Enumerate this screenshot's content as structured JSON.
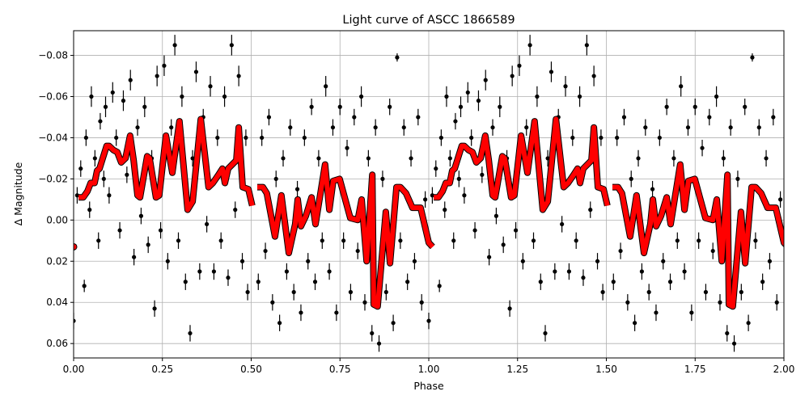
{
  "chart_data": {
    "type": "scatter",
    "title": "Light curve of ASCC 1866589",
    "xlabel": "Phase",
    "ylabel": "Δ Magnitude",
    "xlim": [
      0,
      2
    ],
    "ylim": [
      0.067,
      -0.092
    ],
    "y_inverted": true,
    "grid": true,
    "x_ticks": [
      "0.00",
      "0.25",
      "0.50",
      "0.75",
      "1.00",
      "1.25",
      "1.50",
      "1.75",
      "2.00"
    ],
    "x_tick_values": [
      0,
      0.25,
      0.5,
      0.75,
      1,
      1.25,
      1.5,
      1.75,
      2
    ],
    "y_ticks": [
      "−0.08",
      "−0.06",
      "−0.04",
      "−0.02",
      "0.00",
      "0.02",
      "0.04",
      "0.06"
    ],
    "y_tick_values": [
      -0.08,
      -0.06,
      -0.04,
      -0.02,
      0,
      0.02,
      0.04,
      0.06
    ],
    "colors": {
      "observations": "#000000",
      "model": "#ff0000",
      "grid": "#b0b0b0"
    },
    "observations_repeated_at_phase_plus_one": true,
    "observations": [
      [
        0.0,
        0.049,
        0.004
      ],
      [
        0.01,
        -0.012,
        0.004
      ],
      [
        0.02,
        -0.025,
        0.004
      ],
      [
        0.03,
        0.032,
        0.003
      ],
      [
        0.035,
        -0.04,
        0.004
      ],
      [
        0.045,
        -0.005,
        0.004
      ],
      [
        0.05,
        -0.06,
        0.005
      ],
      [
        0.06,
        -0.03,
        0.004
      ],
      [
        0.07,
        0.01,
        0.004
      ],
      [
        0.075,
        -0.048,
        0.004
      ],
      [
        0.085,
        -0.02,
        0.004
      ],
      [
        0.09,
        -0.055,
        0.005
      ],
      [
        0.1,
        -0.012,
        0.004
      ],
      [
        0.11,
        -0.062,
        0.005
      ],
      [
        0.12,
        -0.04,
        0.004
      ],
      [
        0.13,
        0.005,
        0.004
      ],
      [
        0.14,
        -0.058,
        0.005
      ],
      [
        0.15,
        -0.022,
        0.004
      ],
      [
        0.16,
        -0.068,
        0.005
      ],
      [
        0.17,
        0.018,
        0.004
      ],
      [
        0.18,
        -0.045,
        0.004
      ],
      [
        0.19,
        -0.002,
        0.004
      ],
      [
        0.2,
        -0.055,
        0.005
      ],
      [
        0.21,
        0.012,
        0.004
      ],
      [
        0.22,
        -0.03,
        0.004
      ],
      [
        0.228,
        0.043,
        0.004
      ],
      [
        0.235,
        -0.07,
        0.005
      ],
      [
        0.245,
        0.005,
        0.004
      ],
      [
        0.255,
        -0.075,
        0.005
      ],
      [
        0.265,
        0.02,
        0.004
      ],
      [
        0.275,
        -0.045,
        0.004
      ],
      [
        0.285,
        -0.085,
        0.005
      ],
      [
        0.295,
        0.01,
        0.004
      ],
      [
        0.305,
        -0.06,
        0.005
      ],
      [
        0.315,
        0.03,
        0.004
      ],
      [
        0.328,
        0.055,
        0.004
      ],
      [
        0.335,
        -0.03,
        0.004
      ],
      [
        0.345,
        -0.072,
        0.005
      ],
      [
        0.355,
        0.025,
        0.004
      ],
      [
        0.365,
        -0.05,
        0.004
      ],
      [
        0.375,
        0.002,
        0.004
      ],
      [
        0.385,
        -0.065,
        0.005
      ],
      [
        0.395,
        0.025,
        0.004
      ],
      [
        0.405,
        -0.04,
        0.004
      ],
      [
        0.415,
        0.01,
        0.004
      ],
      [
        0.425,
        -0.06,
        0.005
      ],
      [
        0.435,
        0.028,
        0.004
      ],
      [
        0.445,
        -0.085,
        0.005
      ],
      [
        0.455,
        -0.005,
        0.004
      ],
      [
        0.465,
        -0.07,
        0.005
      ],
      [
        0.475,
        0.02,
        0.004
      ],
      [
        0.485,
        -0.04,
        0.004
      ],
      [
        0.49,
        0.035,
        0.004
      ],
      [
        0.52,
        0.03,
        0.004
      ],
      [
        0.53,
        -0.04,
        0.004
      ],
      [
        0.54,
        0.015,
        0.004
      ],
      [
        0.55,
        -0.05,
        0.004
      ],
      [
        0.56,
        0.04,
        0.004
      ],
      [
        0.57,
        -0.02,
        0.004
      ],
      [
        0.58,
        0.05,
        0.004
      ],
      [
        0.59,
        -0.03,
        0.004
      ],
      [
        0.6,
        0.025,
        0.004
      ],
      [
        0.61,
        -0.045,
        0.004
      ],
      [
        0.62,
        0.035,
        0.004
      ],
      [
        0.63,
        -0.015,
        0.004
      ],
      [
        0.64,
        0.045,
        0.004
      ],
      [
        0.65,
        -0.04,
        0.004
      ],
      [
        0.66,
        0.02,
        0.004
      ],
      [
        0.67,
        -0.055,
        0.004
      ],
      [
        0.68,
        0.03,
        0.004
      ],
      [
        0.69,
        -0.03,
        0.004
      ],
      [
        0.7,
        0.01,
        0.004
      ],
      [
        0.71,
        -0.065,
        0.005
      ],
      [
        0.72,
        0.025,
        0.004
      ],
      [
        0.73,
        -0.045,
        0.004
      ],
      [
        0.74,
        0.045,
        0.004
      ],
      [
        0.75,
        -0.055,
        0.004
      ],
      [
        0.76,
        0.01,
        0.004
      ],
      [
        0.77,
        -0.035,
        0.004
      ],
      [
        0.78,
        0.035,
        0.004
      ],
      [
        0.79,
        -0.05,
        0.004
      ],
      [
        0.8,
        0.015,
        0.004
      ],
      [
        0.81,
        -0.06,
        0.005
      ],
      [
        0.82,
        0.04,
        0.004
      ],
      [
        0.83,
        -0.03,
        0.004
      ],
      [
        0.84,
        0.055,
        0.004
      ],
      [
        0.85,
        -0.045,
        0.004
      ],
      [
        0.86,
        0.06,
        0.004
      ],
      [
        0.87,
        -0.02,
        0.004
      ],
      [
        0.88,
        0.035,
        0.004
      ],
      [
        0.89,
        -0.055,
        0.004
      ],
      [
        0.9,
        0.05,
        0.004
      ],
      [
        0.911,
        -0.079,
        0.002
      ],
      [
        0.92,
        0.01,
        0.004
      ],
      [
        0.93,
        -0.045,
        0.004
      ],
      [
        0.94,
        0.03,
        0.004
      ],
      [
        0.95,
        -0.03,
        0.004
      ],
      [
        0.96,
        0.02,
        0.004
      ],
      [
        0.97,
        -0.05,
        0.004
      ],
      [
        0.98,
        0.04,
        0.004
      ],
      [
        0.99,
        -0.01,
        0.004
      ]
    ],
    "model_segments": [
      [
        [
          0.014,
          -0.011
        ],
        [
          0.027,
          -0.011
        ],
        [
          0.039,
          -0.014
        ],
        [
          0.048,
          -0.018
        ],
        [
          0.059,
          -0.018
        ],
        [
          0.066,
          -0.024
        ],
        [
          0.073,
          -0.025
        ],
        [
          0.082,
          -0.03
        ],
        [
          0.093,
          -0.036
        ],
        [
          0.1,
          -0.036
        ],
        [
          0.112,
          -0.034
        ],
        [
          0.123,
          -0.033
        ],
        [
          0.134,
          -0.028
        ],
        [
          0.146,
          -0.03
        ],
        [
          0.159,
          -0.041
        ],
        [
          0.169,
          -0.029
        ],
        [
          0.18,
          -0.012
        ],
        [
          0.187,
          -0.011
        ],
        [
          0.207,
          -0.031
        ],
        [
          0.214,
          -0.03
        ],
        [
          0.232,
          -0.011
        ],
        [
          0.241,
          -0.012
        ],
        [
          0.26,
          -0.041
        ],
        [
          0.278,
          -0.023
        ],
        [
          0.298,
          -0.048
        ],
        [
          0.321,
          -0.005
        ],
        [
          0.335,
          -0.009
        ],
        [
          0.358,
          -0.049
        ],
        [
          0.38,
          -0.016
        ],
        [
          0.392,
          -0.018
        ],
        [
          0.408,
          -0.022
        ],
        [
          0.419,
          -0.025
        ],
        [
          0.426,
          -0.018
        ],
        [
          0.435,
          -0.025
        ],
        [
          0.458,
          -0.029
        ],
        [
          0.465,
          -0.045
        ],
        [
          0.476,
          -0.016
        ],
        [
          0.492,
          -0.015
        ],
        [
          0.503,
          -0.007
        ]
      ],
      [
        [
          0.517,
          -0.016
        ],
        [
          0.533,
          -0.016
        ],
        [
          0.544,
          -0.013
        ],
        [
          0.567,
          0.008
        ],
        [
          0.585,
          -0.012
        ],
        [
          0.606,
          0.016
        ],
        [
          0.624,
          0.002
        ],
        [
          0.631,
          -0.01
        ],
        [
          0.64,
          0.003
        ],
        [
          0.654,
          -0.002
        ],
        [
          0.67,
          -0.011
        ],
        [
          0.681,
          0.002
        ],
        [
          0.708,
          -0.027
        ],
        [
          0.72,
          -0.005
        ],
        [
          0.731,
          -0.019
        ],
        [
          0.749,
          -0.02
        ],
        [
          0.779,
          -0.001
        ],
        [
          0.8,
          0.0
        ],
        [
          0.811,
          -0.01
        ],
        [
          0.825,
          0.02
        ],
        [
          0.841,
          -0.022
        ],
        [
          0.845,
          0.041
        ],
        [
          0.856,
          0.042
        ],
        [
          0.879,
          -0.004
        ],
        [
          0.891,
          0.021
        ],
        [
          0.909,
          -0.016
        ],
        [
          0.92,
          -0.016
        ],
        [
          0.936,
          -0.013
        ],
        [
          0.954,
          -0.006
        ],
        [
          0.977,
          -0.006
        ],
        [
          1.0,
          0.011
        ],
        [
          1.011,
          0.013
        ]
      ]
    ],
    "model_repeated_at_phase_plus_one": true
  }
}
